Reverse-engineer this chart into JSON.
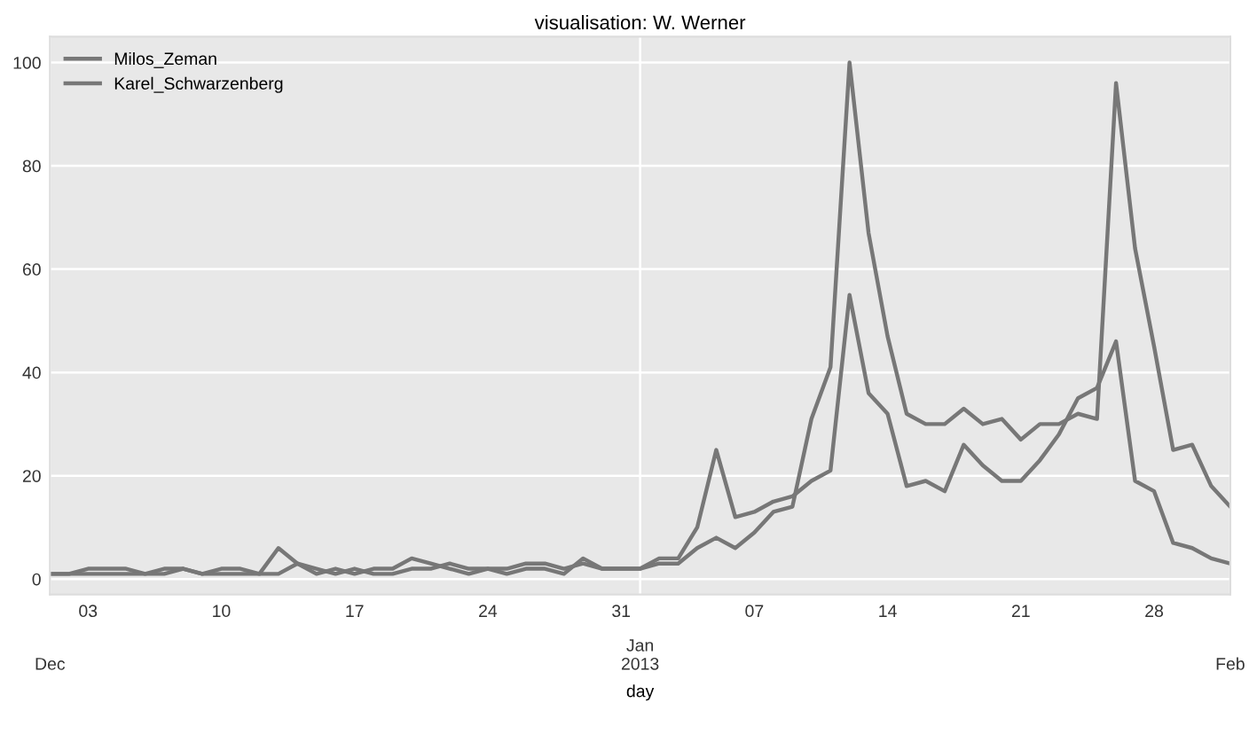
{
  "chart_data": {
    "type": "line",
    "title": "visualisation: W. Werner",
    "xlabel": "day",
    "x": [
      "2012-12-01",
      "2012-12-02",
      "2012-12-03",
      "2012-12-04",
      "2012-12-05",
      "2012-12-06",
      "2012-12-07",
      "2012-12-08",
      "2012-12-09",
      "2012-12-10",
      "2012-12-11",
      "2012-12-12",
      "2012-12-13",
      "2012-12-14",
      "2012-12-15",
      "2012-12-16",
      "2012-12-17",
      "2012-12-18",
      "2012-12-19",
      "2012-12-20",
      "2012-12-21",
      "2012-12-22",
      "2012-12-23",
      "2012-12-24",
      "2012-12-25",
      "2012-12-26",
      "2012-12-27",
      "2012-12-28",
      "2012-12-29",
      "2012-12-30",
      "2012-12-31",
      "2013-01-01",
      "2013-01-02",
      "2013-01-03",
      "2013-01-04",
      "2013-01-05",
      "2013-01-06",
      "2013-01-07",
      "2013-01-08",
      "2013-01-09",
      "2013-01-10",
      "2013-01-11",
      "2013-01-12",
      "2013-01-13",
      "2013-01-14",
      "2013-01-15",
      "2013-01-16",
      "2013-01-17",
      "2013-01-18",
      "2013-01-19",
      "2013-01-20",
      "2013-01-21",
      "2013-01-22",
      "2013-01-23",
      "2013-01-24",
      "2013-01-25",
      "2013-01-26",
      "2013-01-27",
      "2013-01-28",
      "2013-01-29",
      "2013-01-30",
      "2013-01-31",
      "2013-02-01"
    ],
    "series": [
      {
        "name": "Milos_Zeman",
        "color": "#777777",
        "values": [
          1,
          1,
          2,
          2,
          2,
          1,
          1,
          2,
          1,
          1,
          1,
          1,
          6,
          3,
          1,
          2,
          1,
          2,
          2,
          4,
          3,
          2,
          1,
          2,
          1,
          2,
          2,
          1,
          4,
          2,
          2,
          2,
          3,
          3,
          6,
          8,
          6,
          9,
          13,
          14,
          31,
          41,
          100,
          67,
          47,
          32,
          30,
          30,
          33,
          30,
          31,
          27,
          30,
          30,
          32,
          31,
          96,
          64,
          45,
          25,
          26,
          18,
          14
        ]
      },
      {
        "name": "Karel_Schwarzenberg",
        "color": "#777777",
        "values": [
          1,
          1,
          1,
          1,
          1,
          1,
          2,
          2,
          1,
          2,
          2,
          1,
          1,
          3,
          2,
          1,
          2,
          1,
          1,
          2,
          2,
          3,
          2,
          2,
          2,
          3,
          3,
          2,
          3,
          2,
          2,
          2,
          4,
          4,
          10,
          25,
          12,
          13,
          15,
          16,
          19,
          21,
          55,
          36,
          32,
          18,
          19,
          17,
          26,
          22,
          19,
          19,
          23,
          28,
          35,
          37,
          46,
          19,
          17,
          7,
          6,
          4,
          3
        ]
      }
    ],
    "xlim": [
      "2012-12-01",
      "2013-02-01"
    ],
    "annotations": [
      "Dec",
      "Jan\n2013",
      "Feb"
    ],
    "xticks": [
      {
        "value": "2012-12-03",
        "label": "03"
      },
      {
        "value": "2012-12-10",
        "label": "10"
      },
      {
        "value": "2012-12-17",
        "label": "17"
      },
      {
        "value": "2012-12-24",
        "label": "24"
      },
      {
        "value": "2012-12-31",
        "label": "31"
      },
      {
        "value": "2013-01-07",
        "label": "07"
      },
      {
        "value": "2013-01-14",
        "label": "14"
      },
      {
        "value": "2013-01-21",
        "label": "21"
      },
      {
        "value": "2013-01-28",
        "label": "28"
      }
    ],
    "ylim": [
      -3,
      105
    ],
    "yticks": [
      0,
      20,
      40,
      60,
      80,
      100
    ],
    "grid": true,
    "legend": "top left",
    "line_style": "solid",
    "marker": "none"
  }
}
